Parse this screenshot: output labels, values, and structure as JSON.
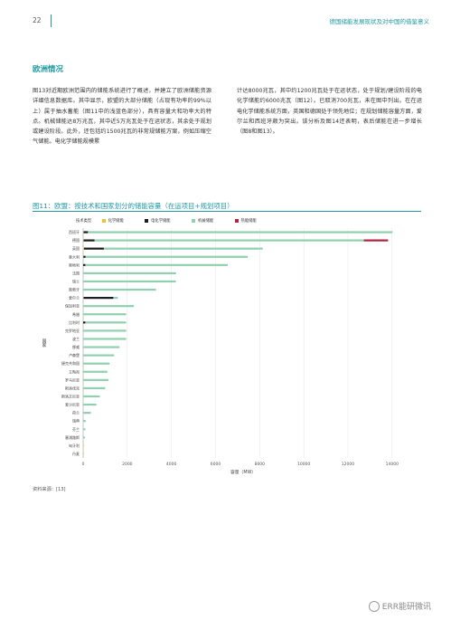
{
  "header": {
    "page_number": "22",
    "doc_title": "德国储能发展现状及对中国的借鉴意义"
  },
  "section": {
    "title": "欧洲情况"
  },
  "body": {
    "col1": "图13对近期欧洲范围内的储能系统进行了概述，并建立了欧洲储能资源详细信息数据库。其中显示，欧盟的大部分储能（占现有功率的99%以上）属于抽水蓄能（图11中的浅蓝色部分），具有容量大和功率大的特点。机械储能达8万兆瓦，其中近5万兆瓦处于在运状态，其余处于规划或建设阶段。此外，还包括约1500兆瓦的非常规储能方案，例如压缩空气储能。电化学储能规模累",
    "col2": "计达8000兆瓦，其中约1200兆瓦处于在运状态，处于规划/建设阶段的电化学储能约6000兆瓦（图12）。已取消700兆瓦，未在图中列出。在在运电化学储能系统方面，英国和德国处于领先地位；在规划储能容量方面，爱尔兰和西班牙颇为突出。该分析及图14还表明，表后储能在进一步增长（图8和图13）。"
  },
  "figure": {
    "title": "图11：欧盟：按技术和国家划分的储能容量（在运项目+规划项目）",
    "source": "资料来源：[13]"
  },
  "chart_data": {
    "type": "bar",
    "orientation": "horizontal",
    "stacked": true,
    "legend_title": "技术类型",
    "legend_position": "top",
    "categories": [
      "西班牙",
      "德国",
      "英国",
      "意大利",
      "奥地利",
      "法国",
      "瑞士",
      "葡萄牙",
      "爱尔兰",
      "保加利亚",
      "希腊",
      "比利时",
      "克罗地亚",
      "波兰",
      "挪威",
      "卢森堡",
      "捷克共和国",
      "立陶宛",
      "罗马尼亚",
      "斯洛伐克",
      "斯洛文尼亚",
      "爱沙尼亚",
      "荷兰",
      "瑞典",
      "芬兰",
      "塞浦路斯",
      "匈牙利",
      "丹麦"
    ],
    "series": [
      {
        "name": "化学储能",
        "color": "#f2c230",
        "values": [
          20,
          20,
          40,
          10,
          0,
          10,
          0,
          0,
          20,
          0,
          0,
          0,
          0,
          0,
          0,
          0,
          0,
          0,
          0,
          0,
          0,
          0,
          0,
          0,
          0,
          0,
          20,
          30
        ]
      },
      {
        "name": "电化学储能",
        "color": "#1c1c1c",
        "values": [
          200,
          500,
          900,
          100,
          100,
          0,
          0,
          0,
          1350,
          0,
          0,
          100,
          0,
          0,
          0,
          0,
          0,
          0,
          0,
          0,
          0,
          0,
          0,
          0,
          0,
          0,
          0,
          0
        ]
      },
      {
        "name": "机械储能",
        "color": "#8fd0ae",
        "values": [
          13800,
          12200,
          7200,
          7350,
          6450,
          4200,
          4200,
          3300,
          200,
          2300,
          1950,
          1850,
          1950,
          1950,
          1650,
          1400,
          1200,
          1100,
          1150,
          1000,
          750,
          600,
          350,
          120,
          100,
          80,
          0,
          0
        ]
      },
      {
        "name": "热能储能",
        "color": "#b0233f",
        "values": [
          0,
          1100,
          0,
          0,
          0,
          0,
          0,
          0,
          0,
          0,
          0,
          0,
          0,
          0,
          0,
          0,
          0,
          0,
          0,
          0,
          0,
          0,
          0,
          0,
          0,
          0,
          0,
          0
        ]
      }
    ],
    "x_ticks": [
      "0",
      "2000",
      "4000",
      "6000",
      "8000",
      "10000",
      "12000",
      "14000"
    ],
    "xlim": [
      0,
      14500
    ],
    "xlabel": "容量（MW）",
    "ylabel": "国家",
    "grid": true
  },
  "watermark": "ERR能研微讯"
}
